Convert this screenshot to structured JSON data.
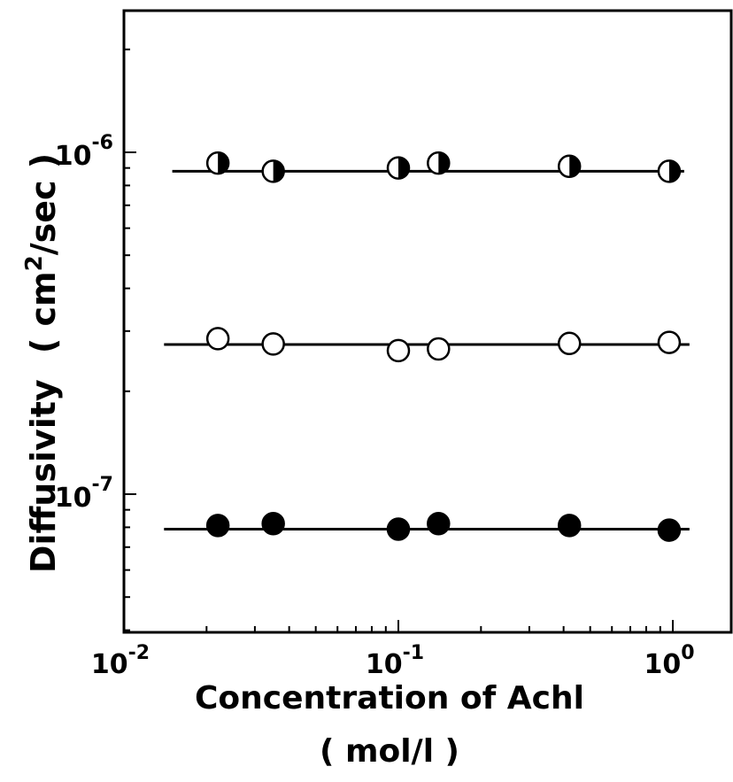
{
  "chart_data": {
    "type": "scatter",
    "xlabel": "Concentration of Achl",
    "xlabel_unit": "( mol/l )",
    "ylabel": "Diffusivity",
    "ylabel_unit": "( cm2/sec )",
    "x_scale": "log",
    "y_scale": "log",
    "xlim": [
      0.01,
      1.2
    ],
    "ylim": [
      4e-08,
      2.5e-06
    ],
    "x_tick_labels": [
      {
        "value": 0.01,
        "base": "10",
        "exp": "-2"
      },
      {
        "value": 0.1,
        "base": "10",
        "exp": "-1"
      },
      {
        "value": 1,
        "base": "10",
        "exp": "0"
      }
    ],
    "y_tick_labels": [
      {
        "value": 1e-07,
        "base": "10",
        "exp": "-7"
      },
      {
        "value": 1e-06,
        "base": "10",
        "exp": "-6"
      }
    ],
    "grid": false,
    "series": [
      {
        "marker": "half-filled-circle",
        "x": [
          0.022,
          0.035,
          0.1,
          0.14,
          0.42,
          0.97
        ],
        "y": [
          9.3e-07,
          8.8e-07,
          9e-07,
          9.3e-07,
          9.1e-07,
          8.8e-07
        ],
        "line": {
          "x": [
            0.015,
            1.1
          ],
          "y": [
            8.8e-07,
            8.8e-07
          ]
        }
      },
      {
        "marker": "open-circle",
        "x": [
          0.022,
          0.035,
          0.1,
          0.14,
          0.42,
          0.97
        ],
        "y": [
          2.85e-07,
          2.75e-07,
          2.63e-07,
          2.66e-07,
          2.76e-07,
          2.78e-07
        ],
        "line": {
          "x": [
            0.014,
            1.15
          ],
          "y": [
            2.74e-07,
            2.74e-07
          ]
        }
      },
      {
        "marker": "filled-circle",
        "x": [
          0.022,
          0.035,
          0.1,
          0.14,
          0.42,
          0.97
        ],
        "y": [
          8.1e-08,
          8.2e-08,
          7.9e-08,
          8.2e-08,
          8.1e-08,
          7.85e-08
        ],
        "line": {
          "x": [
            0.014,
            1.15
          ],
          "y": [
            7.9e-08,
            7.9e-08
          ]
        }
      }
    ]
  }
}
